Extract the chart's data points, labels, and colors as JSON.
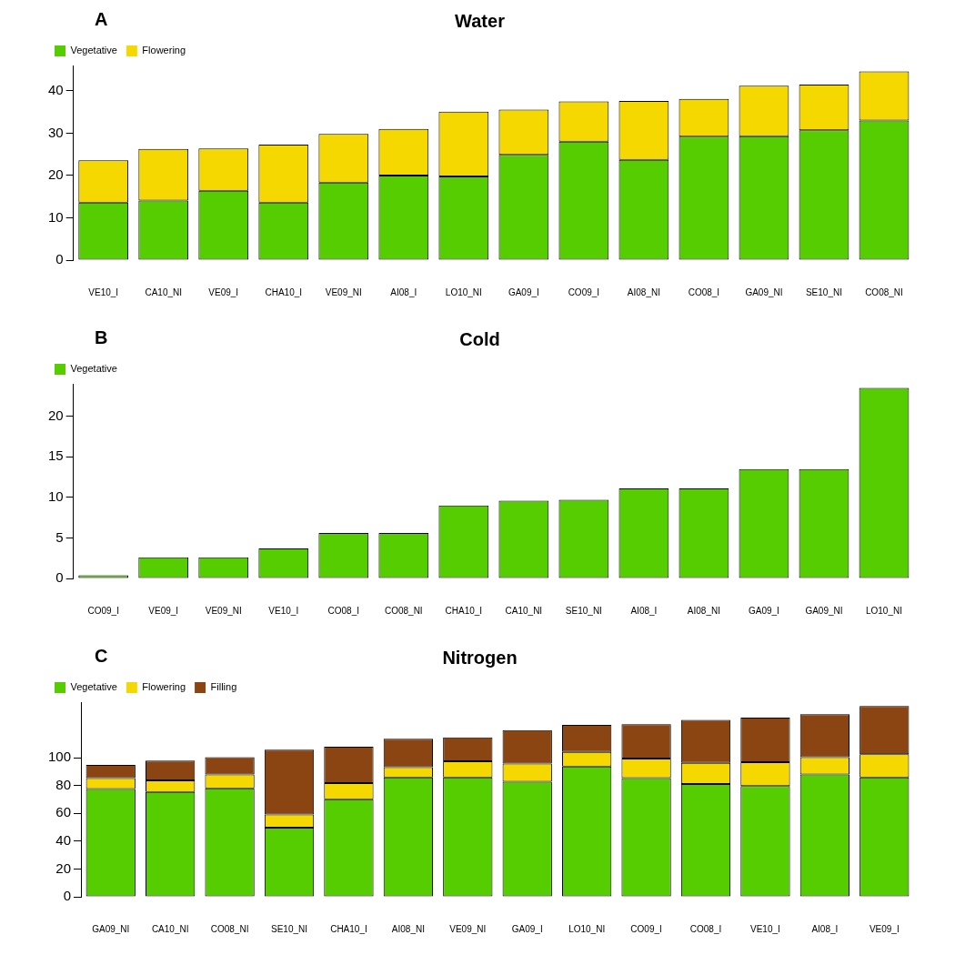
{
  "chart_data": [
    {
      "type": "bar",
      "title": "Water",
      "annotations": [
        "A"
      ],
      "stacked": true,
      "legend": "top left",
      "grid": false,
      "categories": [
        "VE10_I",
        "CA10_NI",
        "VE09_I",
        "CHA10_I",
        "VE09_NI",
        "AI08_I",
        "LO10_NI",
        "GA09_I",
        "CO09_I",
        "AI08_NI",
        "CO08_I",
        "GA09_NI",
        "SE10_NI",
        "CO08_NI"
      ],
      "series": [
        {
          "name": "Vegetative",
          "color": "#55cd00",
          "values": [
            13.6,
            14.1,
            16.4,
            13.6,
            18.3,
            20.0,
            19.8,
            24.9,
            28.0,
            23.7,
            29.2,
            29.3,
            30.7,
            33.0
          ]
        },
        {
          "name": "Flowering",
          "color": "#f5d800",
          "values": [
            10.0,
            12.2,
            10.0,
            13.7,
            11.5,
            11.0,
            15.3,
            10.7,
            9.5,
            13.9,
            8.9,
            11.9,
            10.8,
            11.6
          ]
        }
      ],
      "ylim": [
        0,
        46
      ],
      "yticks": [
        0,
        10,
        20,
        30,
        40
      ]
    },
    {
      "type": "bar",
      "title": "Cold",
      "annotations": [
        "B"
      ],
      "legend": "top left",
      "grid": false,
      "categories": [
        "CO09_I",
        "VE09_I",
        "VE09_NI",
        "VE10_I",
        "CO08_I",
        "CO08_NI",
        "CHA10_I",
        "CA10_NI",
        "SE10_NI",
        "AI08_I",
        "AI08_NI",
        "GA09_I",
        "GA09_NI",
        "LO10_NI"
      ],
      "series": [
        {
          "name": "Vegetative",
          "color": "#55cd00",
          "values": [
            0.4,
            2.6,
            2.6,
            3.7,
            5.6,
            5.6,
            9.0,
            9.6,
            9.7,
            11.1,
            11.1,
            13.5,
            13.5,
            23.5
          ]
        }
      ],
      "ylim": [
        0,
        24
      ],
      "yticks": [
        0,
        5,
        10,
        15,
        20
      ]
    },
    {
      "type": "bar",
      "title": "Nitrogen",
      "annotations": [
        "C"
      ],
      "stacked": true,
      "legend": "top left",
      "grid": false,
      "categories": [
        "GA09_NI",
        "CA10_NI",
        "CO08_NI",
        "SE10_NI",
        "CHA10_I",
        "AI08_NI",
        "VE09_NI",
        "GA09_I",
        "LO10_NI",
        "CO09_I",
        "CO08_I",
        "VE10_I",
        "AI08_I",
        "VE09_I"
      ],
      "series": [
        {
          "name": "Vegetative",
          "color": "#55cd00",
          "values": [
            77.5,
            75.4,
            78.0,
            49.7,
            70.2,
            85.9,
            85.9,
            82.7,
            93.7,
            85.3,
            81.2,
            79.6,
            88.0,
            85.9
          ]
        },
        {
          "name": "Flowering",
          "color": "#f5d800",
          "values": [
            7.8,
            8.4,
            10.0,
            9.5,
            11.5,
            7.3,
            11.5,
            13.1,
            10.5,
            14.2,
            15.1,
            17.3,
            12.5,
            16.7
          ]
        },
        {
          "name": "Filling",
          "color": "#8b4513",
          "values": [
            9.5,
            14.1,
            12.5,
            46.6,
            26.2,
            20.4,
            17.3,
            24.1,
            19.4,
            24.6,
            30.9,
            31.9,
            30.9,
            34.6
          ]
        }
      ],
      "ylim": [
        0,
        140
      ],
      "yticks": [
        0,
        20,
        40,
        60,
        80,
        100
      ]
    }
  ]
}
